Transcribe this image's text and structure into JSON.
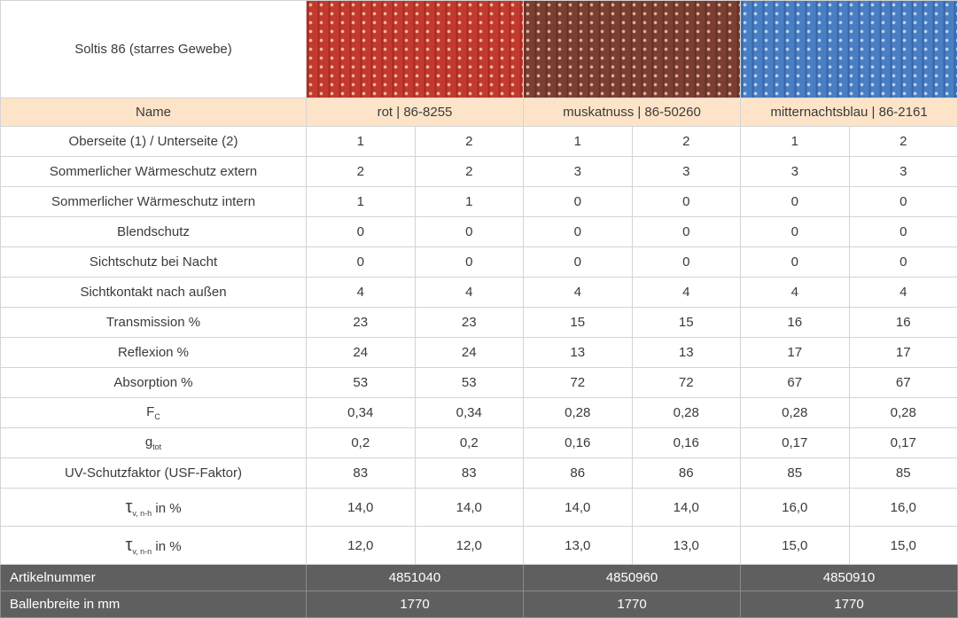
{
  "header": {
    "title": "Soltis 86 (starres Gewebe)"
  },
  "table": {
    "name_label": "Name",
    "colors": [
      "rot | 86-8255",
      "muskatnuss | 86-50260",
      "mitternachtsblau | 86-2161"
    ],
    "rows": [
      {
        "label": "Oberseite (1) / Unterseite (2)",
        "values": [
          "1",
          "2",
          "1",
          "2",
          "1",
          "2"
        ]
      },
      {
        "label": "Sommerlicher Wärmeschutz extern",
        "values": [
          "2",
          "2",
          "3",
          "3",
          "3",
          "3"
        ]
      },
      {
        "label": "Sommerlicher Wärmeschutz intern",
        "values": [
          "1",
          "1",
          "0",
          "0",
          "0",
          "0"
        ]
      },
      {
        "label": "Blendschutz",
        "values": [
          "0",
          "0",
          "0",
          "0",
          "0",
          "0"
        ]
      },
      {
        "label": "Sichtschutz bei Nacht",
        "values": [
          "0",
          "0",
          "0",
          "0",
          "0",
          "0"
        ]
      },
      {
        "label": "Sichtkontakt nach außen",
        "values": [
          "4",
          "4",
          "4",
          "4",
          "4",
          "4"
        ]
      },
      {
        "label": "Transmission %",
        "values": [
          "23",
          "23",
          "15",
          "15",
          "16",
          "16"
        ]
      },
      {
        "label": "Reflexion %",
        "values": [
          "24",
          "24",
          "13",
          "13",
          "17",
          "17"
        ]
      },
      {
        "label": "Absorption %",
        "values": [
          "53",
          "53",
          "72",
          "72",
          "67",
          "67"
        ]
      },
      {
        "label": {
          "main": "F",
          "sub": "C"
        },
        "values": [
          "0,34",
          "0,34",
          "0,28",
          "0,28",
          "0,28",
          "0,28"
        ]
      },
      {
        "label": {
          "main": "g",
          "sub": "tot"
        },
        "values": [
          "0,2",
          "0,2",
          "0,16",
          "0,16",
          "0,17",
          "0,17"
        ]
      },
      {
        "label": "UV-Schutzfaktor (USF-Faktor)",
        "values": [
          "83",
          "83",
          "86",
          "86",
          "85",
          "85"
        ]
      },
      {
        "label": {
          "main": "τ",
          "sub": "v, n-h",
          "suffix": " in %"
        },
        "values": [
          "14,0",
          "14,0",
          "14,0",
          "14,0",
          "16,0",
          "16,0"
        ]
      },
      {
        "label": {
          "main": "τ",
          "sub": "v, n-n",
          "suffix": " in %"
        },
        "values": [
          "12,0",
          "12,0",
          "13,0",
          "13,0",
          "15,0",
          "15,0"
        ]
      }
    ],
    "footer": [
      {
        "label": "Artikelnummer",
        "values": [
          "4851040",
          "4850960",
          "4850910"
        ]
      },
      {
        "label": "Ballenbreite in mm",
        "values": [
          "1770",
          "1770",
          "1770"
        ]
      }
    ]
  }
}
